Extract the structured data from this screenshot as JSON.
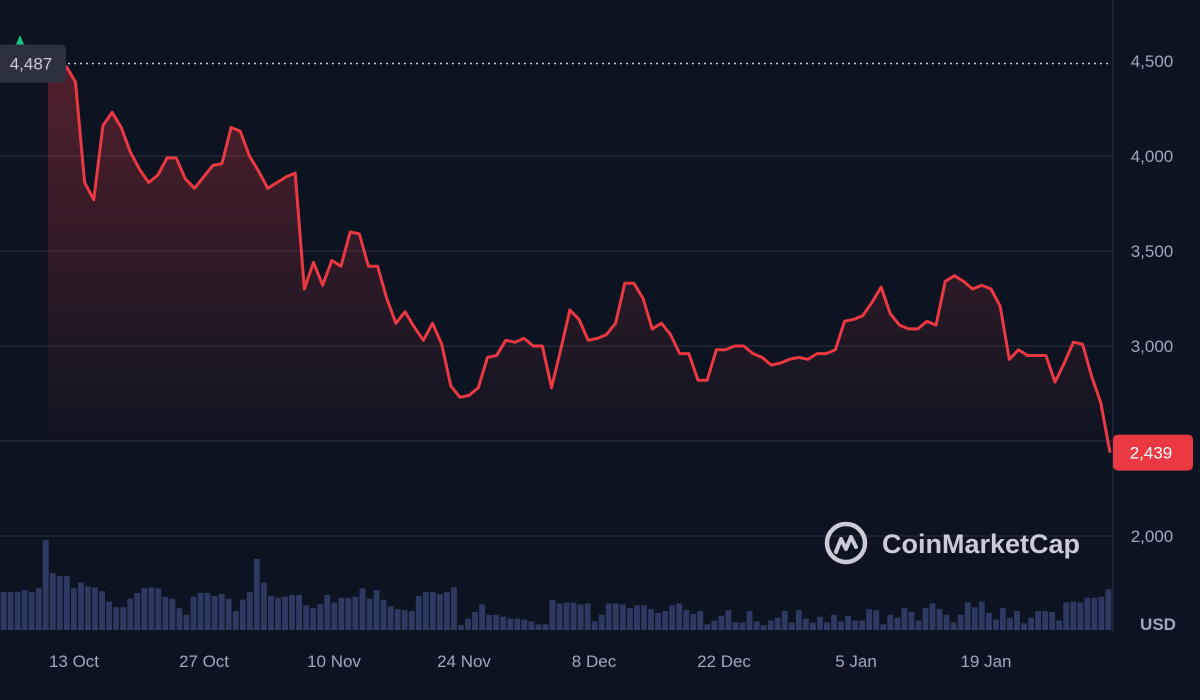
{
  "colors": {
    "background": "#0d1421",
    "line": "#ea3943",
    "grid": "#2a3140",
    "volume": "#2f3a63",
    "badge_current": "#ea3943",
    "badge_high": "#2b313f",
    "high_marker": "#16c784",
    "text": "#a1a7bb"
  },
  "watermark": {
    "text": "CoinMarketCap",
    "icon": "coinmarketcap-logo-icon"
  },
  "high_marker": {
    "icon": "triangle-up-icon"
  },
  "chart_data": {
    "type": "line",
    "title": "",
    "xlabel": "",
    "ylabel": "",
    "unit_label": "USD",
    "grid": true,
    "ylim": [
      1650,
      4750
    ],
    "y_ticks": [
      {
        "value": 4500,
        "label": "4,500"
      },
      {
        "value": 4000,
        "label": "4,000"
      },
      {
        "value": 3500,
        "label": "3,500"
      },
      {
        "value": 3000,
        "label": "3,000"
      },
      {
        "value": 2500,
        "label": ""
      },
      {
        "value": 2000,
        "label": "2,000"
      }
    ],
    "x_ticks": [
      "13 Oct",
      "27 Oct",
      "10 Nov",
      "24 Nov",
      "8 Dec",
      "22 Dec",
      "5 Jan",
      "19 Jan"
    ],
    "start_date": "2024-10-08",
    "end_date": "2025-02-01",
    "high_label": "4,487",
    "high_value": 4487,
    "current_label": "2,439",
    "current_value": 2439,
    "series": [
      {
        "values": [
          4530,
          4480,
          4470,
          4390,
          3860,
          3770,
          4160,
          4230,
          4150,
          4020,
          3930,
          3860,
          3900,
          3990,
          3990,
          3880,
          3830,
          3890,
          3950,
          3960,
          4150,
          4130,
          4000,
          3920,
          3830,
          3860,
          3890,
          3910,
          3300,
          3440,
          3320,
          3450,
          3420,
          3600,
          3590,
          3420,
          3420,
          3250,
          3120,
          3180,
          3100,
          3030,
          3120,
          3010,
          2790,
          2730,
          2740,
          2780,
          2940,
          2950,
          3030,
          3020,
          3040,
          3000,
          3000,
          2780,
          2980,
          3190,
          3140,
          3030,
          3040,
          3060,
          3120,
          3330,
          3330,
          3250,
          3090,
          3120,
          3060,
          2960,
          2960,
          2820,
          2820,
          2980,
          2980,
          3000,
          3000,
          2960,
          2940,
          2900,
          2910,
          2930,
          2940,
          2930,
          2960,
          2960,
          2980,
          3130,
          3140,
          3160,
          3230,
          3310,
          3170,
          3110,
          3090,
          3090,
          3130,
          3110,
          3340,
          3370,
          3340,
          3300,
          3320,
          3300,
          3210,
          2930,
          2980,
          2950,
          2950,
          2950,
          2810,
          2910,
          3020,
          3010,
          2840,
          2700,
          2439
        ]
      }
    ],
    "volume": {
      "values": [
        40,
        40,
        40,
        42,
        40,
        44,
        95,
        60,
        57,
        57,
        44,
        50,
        46,
        45,
        41,
        30,
        24,
        24,
        33,
        39,
        44,
        45,
        44,
        35,
        33,
        23,
        16,
        35,
        39,
        39,
        36,
        38,
        33,
        20,
        32,
        40,
        75,
        50,
        36,
        34,
        35,
        37,
        37,
        26,
        23,
        27,
        37,
        29,
        34,
        34,
        35,
        44,
        33,
        42,
        32,
        25,
        22,
        21,
        20,
        36,
        40,
        40,
        38,
        40,
        45,
        5,
        12,
        19,
        27,
        16,
        16,
        14,
        12,
        12,
        11,
        9,
        6,
        6,
        32,
        28,
        29,
        29,
        27,
        28,
        9,
        16,
        28,
        28,
        27,
        23,
        26,
        26,
        22,
        18,
        20,
        26,
        28,
        21,
        17,
        20,
        6,
        10,
        15,
        21,
        8,
        8,
        20,
        9,
        5,
        10,
        13,
        20,
        8,
        21,
        12,
        8,
        14,
        8,
        16,
        9,
        15,
        10,
        10,
        22,
        21,
        6,
        16,
        13,
        23,
        19,
        10,
        23,
        28,
        22,
        16,
        8,
        16,
        29,
        24,
        30,
        18,
        11,
        23,
        13,
        20,
        7,
        13,
        20,
        20,
        19,
        10,
        29,
        30,
        29,
        34,
        34,
        35,
        43
      ]
    }
  }
}
